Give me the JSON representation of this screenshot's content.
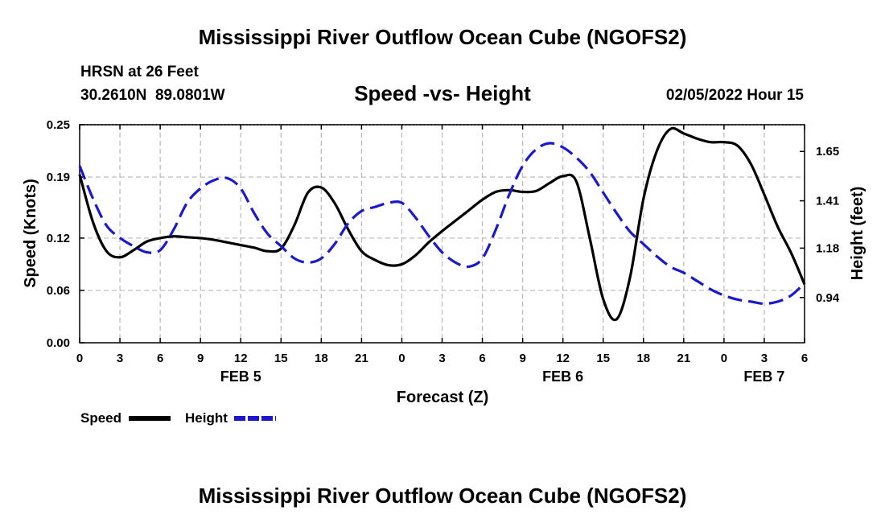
{
  "page": {
    "title": "Mississippi River Outflow Ocean Cube (NGOFS2)",
    "station": "HRSN at 26 Feet",
    "coords": "30.2610N  89.0801W",
    "chart_title": "Speed -vs- Height",
    "datetime": "02/05/2022 Hour 15",
    "footer_title": "Mississippi River Outflow Ocean Cube (NGOFS2)"
  },
  "legend": {
    "speed_label": "Speed",
    "height_label": "Height"
  },
  "colors": {
    "speed": "#000000",
    "height": "#1a1acc",
    "grid": "#b8b8b8"
  },
  "chart_data": {
    "type": "line",
    "title": "Speed -vs- Height",
    "xlabel": "Forecast (Z)",
    "ylabel": "Speed (Knots)",
    "y2label": "Height (feet)",
    "xlim": [
      0,
      54
    ],
    "ylim": [
      0,
      0.25
    ],
    "y2lim": [
      0.72,
      1.78
    ],
    "x_ticks": [
      0,
      3,
      6,
      9,
      12,
      15,
      18,
      21,
      24,
      27,
      30,
      33,
      36,
      39,
      42,
      45,
      48,
      51,
      54
    ],
    "x_tick_labels": [
      "0",
      "3",
      "6",
      "9",
      "12",
      "15",
      "18",
      "21",
      "0",
      "3",
      "6",
      "9",
      "12",
      "15",
      "18",
      "21",
      "0",
      "3",
      "6"
    ],
    "date_labels": [
      {
        "x": 12,
        "label": "FEB 5"
      },
      {
        "x": 36,
        "label": "FEB 6"
      },
      {
        "x": 51,
        "label": "FEB 7"
      }
    ],
    "y_ticks": [
      0.0,
      0.06,
      0.12,
      0.19,
      0.25
    ],
    "y_tick_labels": [
      "0.00",
      "0.06",
      "0.12",
      "0.19",
      "0.25"
    ],
    "y2_ticks": [
      0.94,
      1.18,
      1.41,
      1.65
    ],
    "y2_tick_labels": [
      "0.94",
      "1.18",
      "1.41",
      "1.65"
    ],
    "grid": true,
    "series": [
      {
        "name": "Speed",
        "axis": "left",
        "style": "solid",
        "x": [
          0,
          1,
          2,
          3,
          4,
          5,
          6,
          7,
          8,
          9,
          10,
          11,
          12,
          13,
          14,
          15,
          16,
          17,
          18,
          19,
          20,
          21,
          22,
          23,
          24,
          25,
          26,
          27,
          28,
          29,
          30,
          31,
          32,
          33,
          34,
          35,
          36,
          37,
          38,
          39,
          40,
          41,
          42,
          43,
          44,
          45,
          46,
          47,
          48,
          49,
          50,
          51,
          52,
          53,
          54
        ],
        "values": [
          0.193,
          0.138,
          0.105,
          0.098,
          0.106,
          0.116,
          0.12,
          0.122,
          0.121,
          0.12,
          0.118,
          0.115,
          0.112,
          0.109,
          0.105,
          0.108,
          0.135,
          0.172,
          0.178,
          0.16,
          0.13,
          0.105,
          0.095,
          0.089,
          0.09,
          0.1,
          0.115,
          0.128,
          0.14,
          0.152,
          0.164,
          0.173,
          0.175,
          0.173,
          0.174,
          0.183,
          0.191,
          0.185,
          0.12,
          0.05,
          0.027,
          0.075,
          0.165,
          0.22,
          0.245,
          0.24,
          0.234,
          0.23,
          0.23,
          0.226,
          0.205,
          0.17,
          0.133,
          0.103,
          0.067
        ]
      },
      {
        "name": "Height",
        "axis": "right",
        "style": "dashed",
        "x": [
          0,
          1,
          2,
          3,
          4,
          5,
          6,
          7,
          8,
          9,
          10,
          11,
          12,
          13,
          14,
          15,
          16,
          17,
          18,
          19,
          20,
          21,
          22,
          23,
          24,
          25,
          26,
          27,
          28,
          29,
          30,
          31,
          32,
          33,
          34,
          35,
          36,
          37,
          38,
          39,
          40,
          41,
          42,
          43,
          44,
          45,
          46,
          47,
          48,
          49,
          50,
          51,
          52,
          53,
          54
        ],
        "values": [
          1.58,
          1.42,
          1.29,
          1.23,
          1.19,
          1.16,
          1.17,
          1.27,
          1.4,
          1.47,
          1.51,
          1.52,
          1.47,
          1.35,
          1.25,
          1.19,
          1.13,
          1.11,
          1.13,
          1.2,
          1.3,
          1.36,
          1.38,
          1.4,
          1.4,
          1.33,
          1.24,
          1.16,
          1.11,
          1.09,
          1.13,
          1.27,
          1.44,
          1.58,
          1.66,
          1.69,
          1.67,
          1.62,
          1.55,
          1.45,
          1.35,
          1.26,
          1.2,
          1.14,
          1.09,
          1.06,
          1.02,
          0.98,
          0.95,
          0.93,
          0.92,
          0.91,
          0.92,
          0.95,
          1.01
        ]
      }
    ]
  }
}
